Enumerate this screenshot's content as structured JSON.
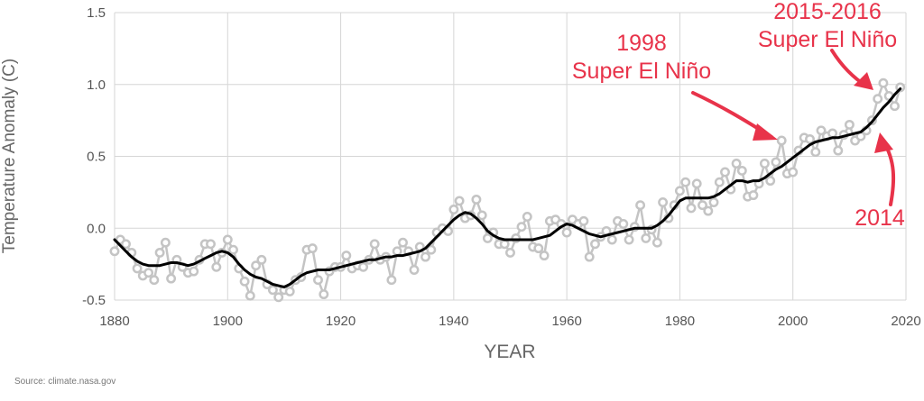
{
  "chart_data": {
    "type": "line",
    "xlabel": "YEAR",
    "ylabel": "Temperature Anomaly (C)",
    "xlim": [
      1880,
      2020
    ],
    "ylim": [
      -0.5,
      1.5
    ],
    "xticks": [
      "1880",
      "1900",
      "1920",
      "1940",
      "1960",
      "1980",
      "2000",
      "2020"
    ],
    "yticks": [
      "-0.5",
      "0.0",
      "0.5",
      "1.0",
      "1.5"
    ],
    "grid": true,
    "series": [
      {
        "style": "annual-points",
        "color": "#c4c4c4",
        "x": [
          1880,
          1881,
          1882,
          1883,
          1884,
          1885,
          1886,
          1887,
          1888,
          1889,
          1890,
          1891,
          1892,
          1893,
          1894,
          1895,
          1896,
          1897,
          1898,
          1899,
          1900,
          1901,
          1902,
          1903,
          1904,
          1905,
          1906,
          1907,
          1908,
          1909,
          1910,
          1911,
          1912,
          1913,
          1914,
          1915,
          1916,
          1917,
          1918,
          1919,
          1920,
          1921,
          1922,
          1923,
          1924,
          1925,
          1926,
          1927,
          1928,
          1929,
          1930,
          1931,
          1932,
          1933,
          1934,
          1935,
          1936,
          1937,
          1938,
          1939,
          1940,
          1941,
          1942,
          1943,
          1944,
          1945,
          1946,
          1947,
          1948,
          1949,
          1950,
          1951,
          1952,
          1953,
          1954,
          1955,
          1956,
          1957,
          1958,
          1959,
          1960,
          1961,
          1962,
          1963,
          1964,
          1965,
          1966,
          1967,
          1968,
          1969,
          1970,
          1971,
          1972,
          1973,
          1974,
          1975,
          1976,
          1977,
          1978,
          1979,
          1980,
          1981,
          1982,
          1983,
          1984,
          1985,
          1986,
          1987,
          1988,
          1989,
          1990,
          1991,
          1992,
          1993,
          1994,
          1995,
          1996,
          1997,
          1998,
          1999,
          2000,
          2001,
          2002,
          2003,
          2004,
          2005,
          2006,
          2007,
          2008,
          2009,
          2010,
          2011,
          2012,
          2013,
          2014,
          2015,
          2016,
          2017,
          2018,
          2019
        ],
        "y": [
          -0.16,
          -0.08,
          -0.11,
          -0.17,
          -0.28,
          -0.33,
          -0.31,
          -0.36,
          -0.17,
          -0.1,
          -0.35,
          -0.22,
          -0.27,
          -0.31,
          -0.3,
          -0.22,
          -0.11,
          -0.11,
          -0.27,
          -0.17,
          -0.08,
          -0.15,
          -0.28,
          -0.37,
          -0.47,
          -0.26,
          -0.22,
          -0.39,
          -0.43,
          -0.48,
          -0.43,
          -0.44,
          -0.36,
          -0.34,
          -0.15,
          -0.14,
          -0.36,
          -0.46,
          -0.3,
          -0.27,
          -0.27,
          -0.19,
          -0.28,
          -0.26,
          -0.27,
          -0.22,
          -0.11,
          -0.22,
          -0.2,
          -0.36,
          -0.16,
          -0.1,
          -0.16,
          -0.29,
          -0.13,
          -0.2,
          -0.15,
          -0.03,
          0,
          -0.02,
          0.13,
          0.19,
          0.07,
          0.09,
          0.2,
          0.09,
          -0.07,
          -0.03,
          -0.11,
          -0.11,
          -0.17,
          -0.07,
          0.01,
          0.08,
          -0.13,
          -0.14,
          -0.19,
          0.05,
          0.06,
          0.03,
          -0.03,
          0.06,
          0.03,
          0.05,
          -0.2,
          -0.11,
          -0.06,
          -0.02,
          -0.08,
          0.05,
          0.03,
          -0.08,
          0.01,
          0.16,
          -0.07,
          -0.01,
          -0.1,
          0.18,
          0.07,
          0.16,
          0.26,
          0.32,
          0.14,
          0.31,
          0.16,
          0.12,
          0.18,
          0.32,
          0.39,
          0.27,
          0.45,
          0.4,
          0.22,
          0.23,
          0.31,
          0.45,
          0.33,
          0.46,
          0.61,
          0.38,
          0.39,
          0.54,
          0.63,
          0.62,
          0.53,
          0.68,
          0.64,
          0.66,
          0.54,
          0.65,
          0.72,
          0.61,
          0.64,
          0.68,
          0.75,
          0.9,
          1.01,
          0.92,
          0.85,
          0.98
        ]
      },
      {
        "style": "smoothed-line",
        "color": "#000000",
        "x": [
          1880,
          1881,
          1882,
          1883,
          1884,
          1885,
          1886,
          1887,
          1888,
          1889,
          1890,
          1891,
          1892,
          1893,
          1894,
          1895,
          1896,
          1897,
          1898,
          1899,
          1900,
          1901,
          1902,
          1903,
          1904,
          1905,
          1906,
          1907,
          1908,
          1909,
          1910,
          1911,
          1912,
          1913,
          1914,
          1915,
          1916,
          1917,
          1918,
          1919,
          1920,
          1921,
          1922,
          1923,
          1924,
          1925,
          1926,
          1927,
          1928,
          1929,
          1930,
          1931,
          1932,
          1933,
          1934,
          1935,
          1936,
          1937,
          1938,
          1939,
          1940,
          1941,
          1942,
          1943,
          1944,
          1945,
          1946,
          1947,
          1948,
          1949,
          1950,
          1951,
          1952,
          1953,
          1954,
          1955,
          1956,
          1957,
          1958,
          1959,
          1960,
          1961,
          1962,
          1963,
          1964,
          1965,
          1966,
          1967,
          1968,
          1969,
          1970,
          1971,
          1972,
          1973,
          1974,
          1975,
          1976,
          1977,
          1978,
          1979,
          1980,
          1981,
          1982,
          1983,
          1984,
          1985,
          1986,
          1987,
          1988,
          1989,
          1990,
          1991,
          1992,
          1993,
          1994,
          1995,
          1996,
          1997,
          1998,
          1999,
          2000,
          2001,
          2002,
          2003,
          2004,
          2005,
          2006,
          2007,
          2008,
          2009,
          2010,
          2011,
          2012,
          2013,
          2014,
          2015,
          2016,
          2017,
          2018,
          2019
        ],
        "y": [
          -0.08,
          -0.12,
          -0.16,
          -0.2,
          -0.23,
          -0.25,
          -0.26,
          -0.26,
          -0.26,
          -0.25,
          -0.24,
          -0.24,
          -0.25,
          -0.26,
          -0.25,
          -0.23,
          -0.21,
          -0.19,
          -0.17,
          -0.16,
          -0.17,
          -0.2,
          -0.25,
          -0.29,
          -0.32,
          -0.34,
          -0.35,
          -0.37,
          -0.39,
          -0.4,
          -0.41,
          -0.39,
          -0.36,
          -0.33,
          -0.31,
          -0.3,
          -0.29,
          -0.29,
          -0.29,
          -0.28,
          -0.27,
          -0.26,
          -0.25,
          -0.24,
          -0.23,
          -0.22,
          -0.22,
          -0.21,
          -0.2,
          -0.2,
          -0.19,
          -0.19,
          -0.18,
          -0.17,
          -0.16,
          -0.14,
          -0.1,
          -0.06,
          -0.02,
          0.02,
          0.06,
          0.09,
          0.11,
          0.1,
          0.07,
          0.03,
          -0.02,
          -0.05,
          -0.07,
          -0.08,
          -0.08,
          -0.08,
          -0.08,
          -0.08,
          -0.08,
          -0.07,
          -0.06,
          -0.05,
          -0.02,
          0.01,
          0.03,
          0.02,
          0,
          -0.02,
          -0.04,
          -0.05,
          -0.06,
          -0.05,
          -0.04,
          -0.03,
          -0.02,
          -0.01,
          0,
          0,
          0,
          0,
          0.02,
          0.05,
          0.09,
          0.14,
          0.19,
          0.21,
          0.21,
          0.21,
          0.21,
          0.21,
          0.22,
          0.24,
          0.27,
          0.3,
          0.33,
          0.33,
          0.32,
          0.33,
          0.33,
          0.35,
          0.38,
          0.41,
          0.43,
          0.46,
          0.49,
          0.52,
          0.55,
          0.58,
          0.6,
          0.61,
          0.62,
          0.63,
          0.63,
          0.64,
          0.65,
          0.66,
          0.67,
          0.7,
          0.74,
          0.79,
          0.84,
          0.88,
          0.93,
          0.97
        ]
      }
    ],
    "annotations": [
      {
        "lines": [
          "1998",
          "Super El Niño"
        ],
        "target": [
          1998,
          0.61
        ]
      },
      {
        "lines": [
          "2015-2016",
          "Super El Niño"
        ],
        "target": [
          2016,
          1.0
        ]
      },
      {
        "lines": [
          "2014"
        ],
        "target": [
          2014,
          0.66
        ]
      }
    ],
    "annotation_color": "#e8334a"
  },
  "source": "Source: climate.nasa.gov"
}
